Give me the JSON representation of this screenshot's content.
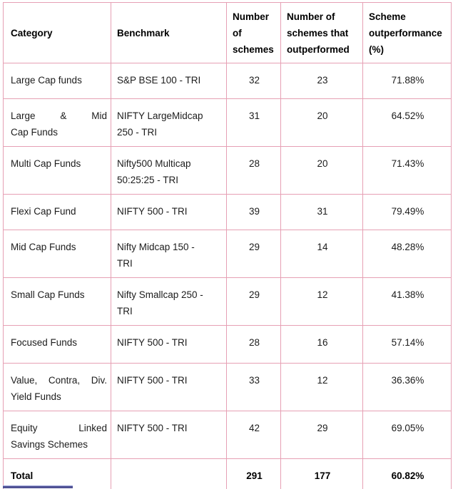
{
  "colors": {
    "border": "#e6a0b4",
    "text": "#1c1c1c",
    "bottom_bar": "#4f5194",
    "bottom_bar_top": "#9ea5d9",
    "background": "#ffffff"
  },
  "table": {
    "headers": [
      "Category",
      "Benchmark",
      "Number of schemes",
      "Number of schemes that outperformed",
      "Scheme outperformance (%)"
    ],
    "rows": [
      {
        "category": "Large Cap funds",
        "benchmark": "S&P BSE 100 - TRI",
        "schemes": "32",
        "outperformed": "23",
        "pct": "71.88%"
      },
      {
        "category": "Large & Mid\nCap Funds",
        "benchmark": "NIFTY LargeMidcap 250 - TRI",
        "schemes": "31",
        "outperformed": "20",
        "pct": "64.52%"
      },
      {
        "category": "Multi Cap Funds",
        "benchmark": "Nifty500 Multicap 50:25:25 - TRI",
        "schemes": "28",
        "outperformed": "20",
        "pct": "71.43%"
      },
      {
        "category": "Flexi Cap Fund",
        "benchmark": "NIFTY 500 - TRI",
        "schemes": "39",
        "outperformed": "31",
        "pct": "79.49%"
      },
      {
        "category": "Mid Cap Funds",
        "benchmark": "Nifty Midcap 150 - TRI",
        "schemes": "29",
        "outperformed": "14",
        "pct": "48.28%"
      },
      {
        "category": "Small Cap Funds",
        "benchmark": "Nifty Smallcap 250 - TRI",
        "schemes": "29",
        "outperformed": "12",
        "pct": "41.38%"
      },
      {
        "category": "Focused Funds",
        "benchmark": "NIFTY 500 - TRI",
        "schemes": "28",
        "outperformed": "16",
        "pct": "57.14%"
      },
      {
        "category": "Value, Contra, Div.\nYield Funds",
        "benchmark": "NIFTY 500 - TRI",
        "schemes": "33",
        "outperformed": "12",
        "pct": "36.36%"
      },
      {
        "category": "Equity Linked\nSavings Schemes",
        "benchmark": "NIFTY 500 - TRI",
        "schemes": "42",
        "outperformed": "29",
        "pct": "69.05%"
      }
    ],
    "total": {
      "category": "Total",
      "benchmark": "",
      "schemes": "291",
      "outperformed": "177",
      "pct": "60.82%"
    }
  }
}
